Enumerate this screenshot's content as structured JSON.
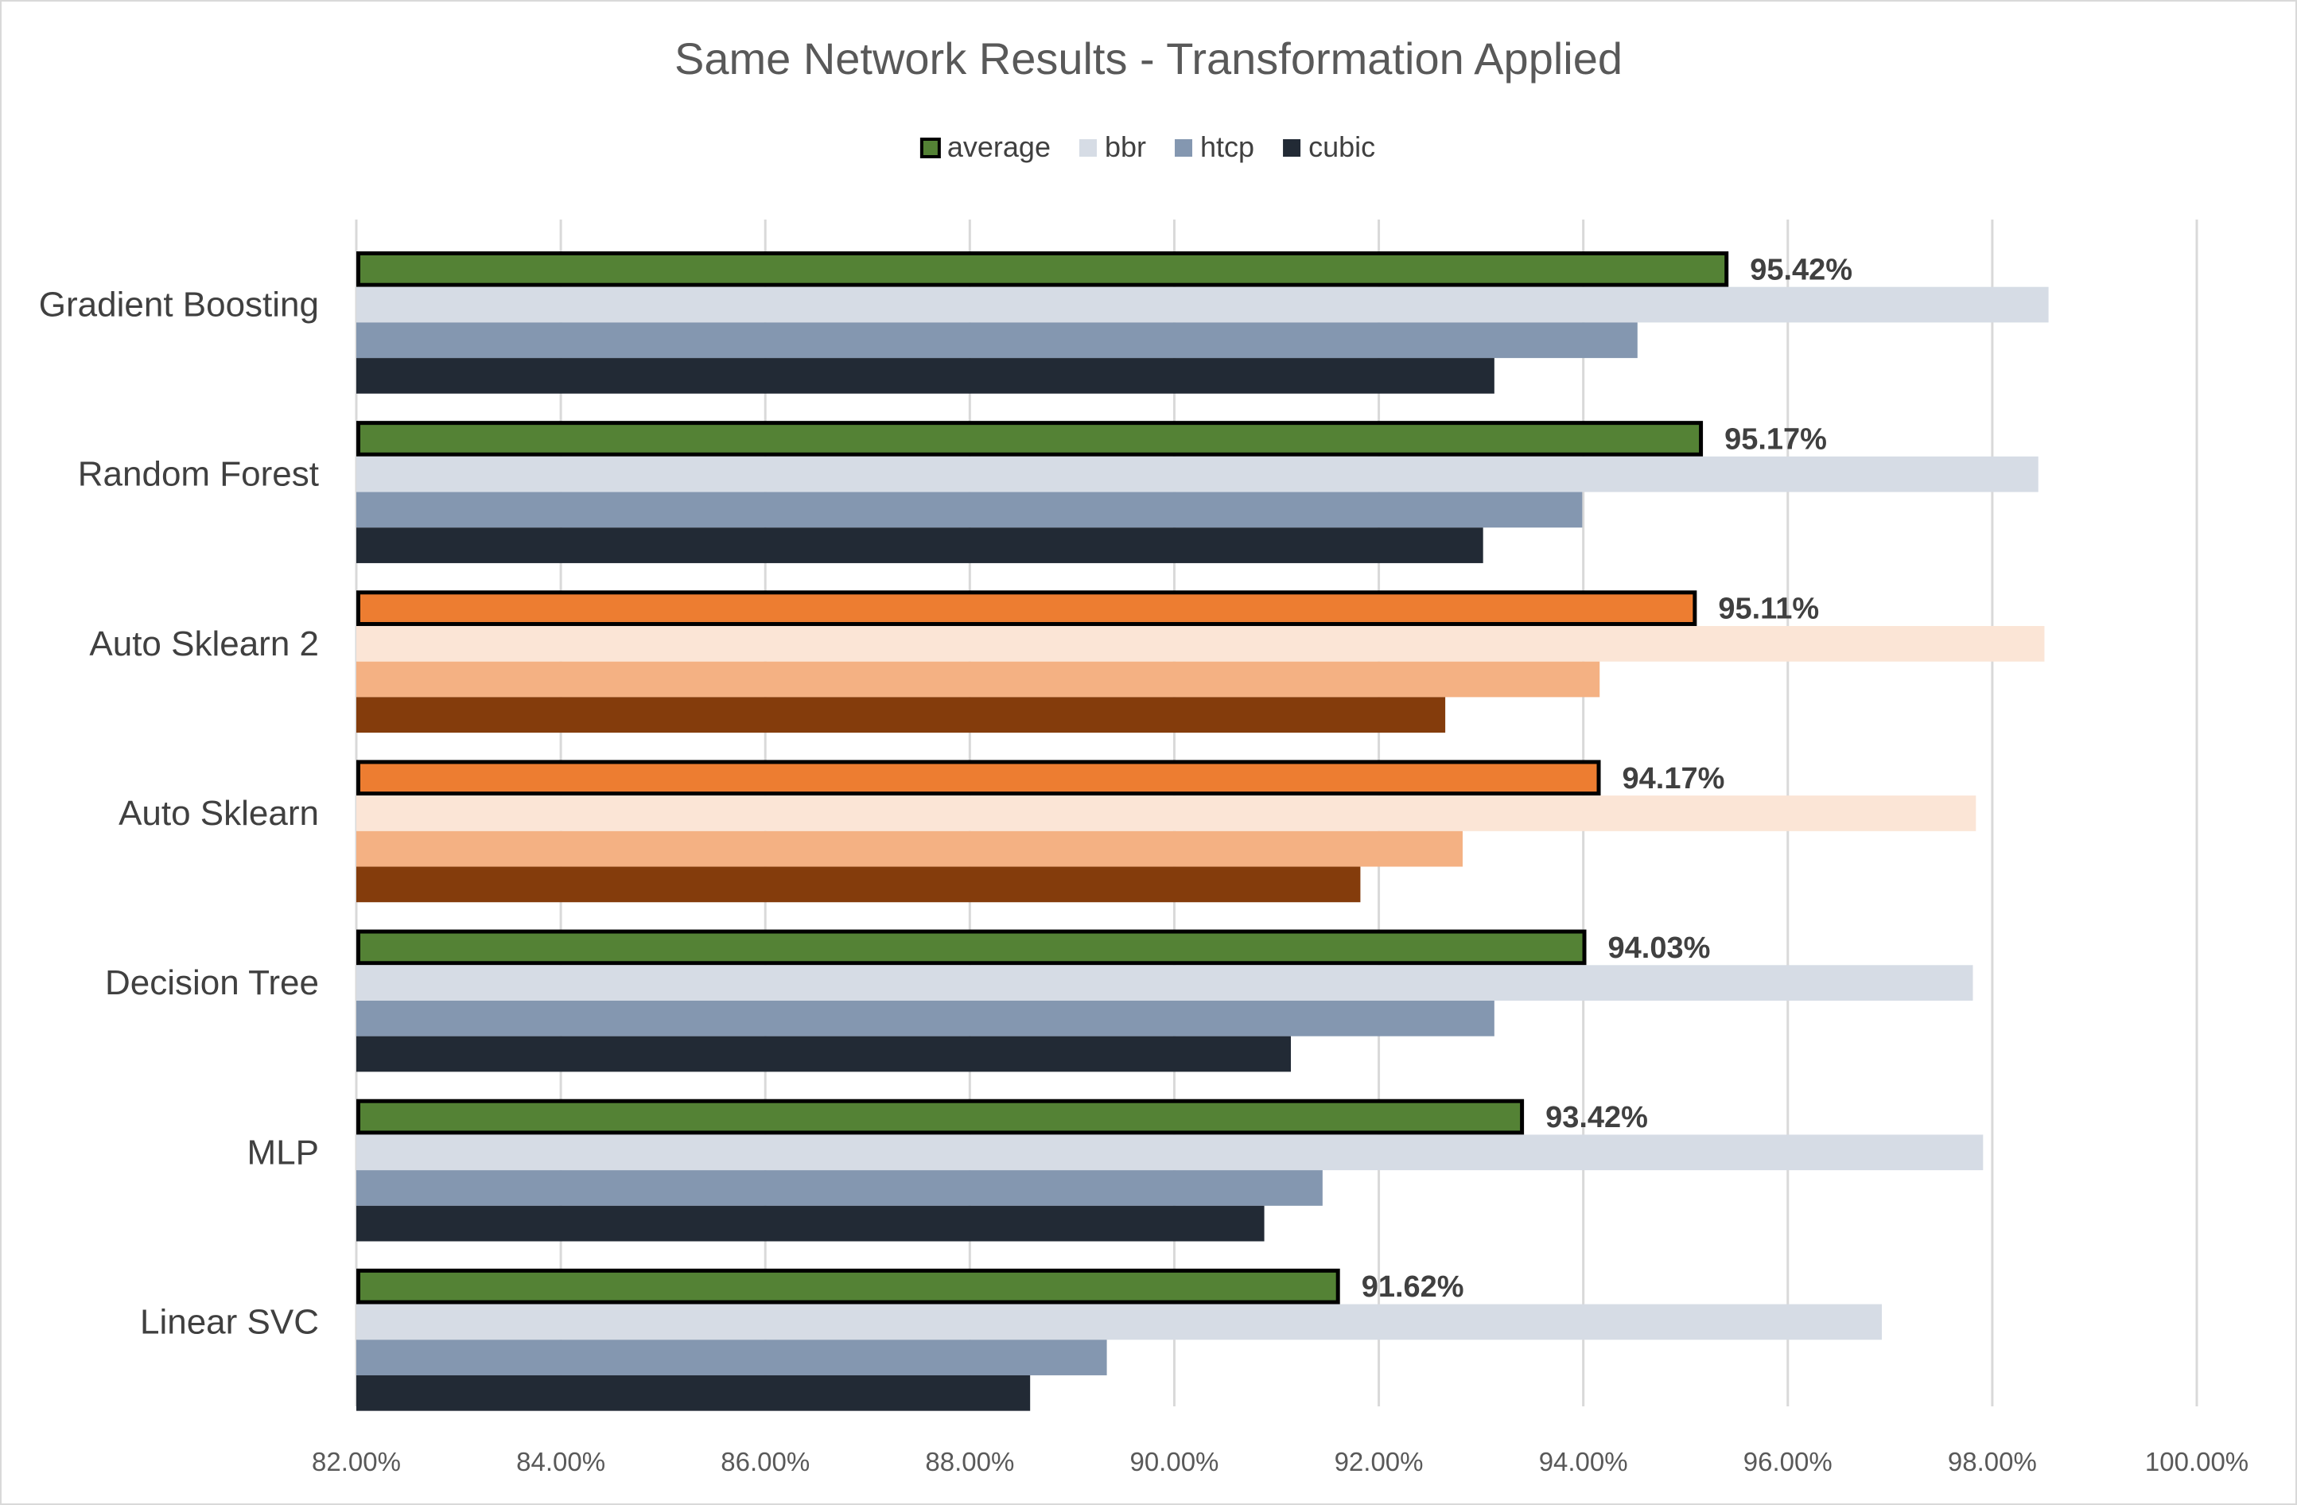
{
  "chart_data": {
    "type": "bar",
    "orientation": "horizontal",
    "title": "Same Network Results - Transformation Applied",
    "xlabel": "",
    "ylabel": "",
    "xlim": [
      0.82,
      1.0
    ],
    "x_ticks": [
      "82.00%",
      "84.00%",
      "86.00%",
      "88.00%",
      "90.00%",
      "92.00%",
      "94.00%",
      "96.00%",
      "98.00%",
      "100.00%"
    ],
    "grid": "vertical",
    "legend_position": "top",
    "categories": [
      "Gradient Boosting",
      "Random Forest",
      "Auto Sklearn 2",
      "Auto Sklearn",
      "Decision Tree",
      "MLP",
      "Linear SVC"
    ],
    "highlighted_categories": [
      "Auto Sklearn 2",
      "Auto Sklearn"
    ],
    "series": [
      {
        "name": "average",
        "values": [
          0.9542,
          0.9517,
          0.9511,
          0.9417,
          0.9403,
          0.9342,
          0.9162
        ],
        "labels": [
          "95.42%",
          "95.17%",
          "95.11%",
          "94.17%",
          "94.03%",
          "93.42%",
          "91.62%"
        ]
      },
      {
        "name": "bbr",
        "values": [
          0.9855,
          0.9845,
          0.9851,
          0.9784,
          0.9781,
          0.9791,
          0.9692
        ]
      },
      {
        "name": "htcp",
        "values": [
          0.9453,
          0.9399,
          0.9416,
          0.9282,
          0.9313,
          0.9145,
          0.8934
        ]
      },
      {
        "name": "cubic",
        "values": [
          0.9313,
          0.9302,
          0.9265,
          0.9182,
          0.9114,
          0.9088,
          0.8859
        ]
      }
    ],
    "colors": {
      "average": "#548235",
      "bbr": "#d6dce5",
      "htcp": "#8497b0",
      "cubic": "#222a35",
      "highlight_average": "#ed7d31",
      "highlight_bbr": "#fbe5d6",
      "highlight_htcp": "#f4b183",
      "highlight_cubic": "#843c0c",
      "average_border": "#000000",
      "grid": "#d9d9d9"
    }
  }
}
